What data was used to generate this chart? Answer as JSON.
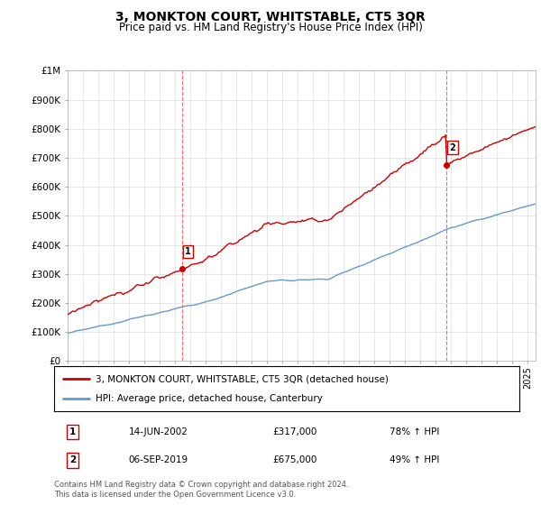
{
  "title": "3, MONKTON COURT, WHITSTABLE, CT5 3QR",
  "subtitle": "Price paid vs. HM Land Registry's House Price Index (HPI)",
  "xlim_start": 1995.0,
  "xlim_end": 2025.5,
  "ylim_min": 0,
  "ylim_max": 1000000,
  "yticks": [
    0,
    100000,
    200000,
    300000,
    400000,
    500000,
    600000,
    700000,
    800000,
    900000,
    1000000
  ],
  "ytick_labels": [
    "£0",
    "£100K",
    "£200K",
    "£300K",
    "£400K",
    "£500K",
    "£600K",
    "£700K",
    "£800K",
    "£900K",
    "£1M"
  ],
  "sale1_x": 2002.45,
  "sale1_y": 317000,
  "sale2_x": 2019.68,
  "sale2_y": 675000,
  "sale1_label": "1",
  "sale2_label": "2",
  "sale1_date": "14-JUN-2002",
  "sale1_price": "£317,000",
  "sale1_hpi": "78% ↑ HPI",
  "sale2_date": "06-SEP-2019",
  "sale2_price": "£675,000",
  "sale2_hpi": "49% ↑ HPI",
  "line1_color": "#cc0000",
  "line2_color": "#6699cc",
  "legend1_label": "3, MONKTON COURT, WHITSTABLE, CT5 3QR (detached house)",
  "legend2_label": "HPI: Average price, detached house, Canterbury",
  "footnote": "Contains HM Land Registry data © Crown copyright and database right 2024.\nThis data is licensed under the Open Government Licence v3.0.",
  "background_color": "#ffffff",
  "grid_color": "#dddddd"
}
